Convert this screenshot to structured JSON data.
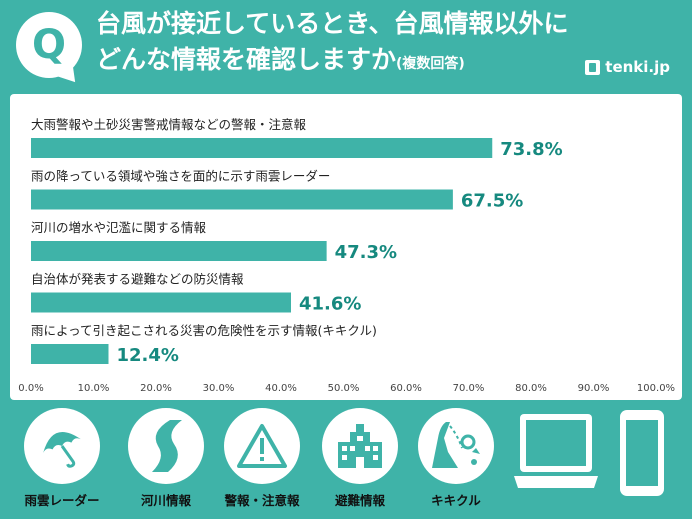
{
  "header": {
    "title_line1": "台風が接近しているとき、台風情報以外に",
    "title_line2": "どんな情報を確認しますか",
    "subtitle": "(複数回答)",
    "q_letter": "Q",
    "brand": "tenki.jp"
  },
  "chart_data": {
    "type": "bar",
    "orientation": "horizontal",
    "categories": [
      "大雨警報や土砂災害警戒情報などの警報・注意報",
      "雨の降っている領域や強さを面的に示す雨雲レーダー",
      "河川の増水や氾濫に関する情報",
      "自治体が発表する避難などの防災情報",
      "雨によって引き起こされる災害の危険性を示す情報(キキクル)"
    ],
    "values": [
      73.8,
      67.5,
      47.3,
      41.6,
      12.4
    ],
    "value_labels": [
      "73.8%",
      "67.5%",
      "47.3%",
      "41.6%",
      "12.4%"
    ],
    "xlim": [
      0,
      100
    ],
    "ticks": [
      "0.0%",
      "10.0%",
      "20.0%",
      "30.0%",
      "40.0%",
      "50.0%",
      "60.0%",
      "70.0%",
      "80.0%",
      "90.0%",
      "100.0%"
    ],
    "grid": false,
    "bar_color": "#3fb3a8",
    "value_color": "#16897f"
  },
  "icons": [
    {
      "icon": "umbrella-icon",
      "label": "雨雲レーダー"
    },
    {
      "icon": "river-icon",
      "label": "河川情報"
    },
    {
      "icon": "warning-icon",
      "label": "警報・注意報"
    },
    {
      "icon": "building-icon",
      "label": "避難情報"
    },
    {
      "icon": "landslide-icon",
      "label": "キキクル"
    }
  ],
  "colors": {
    "background": "#3fb3a8",
    "panel": "#ffffff"
  }
}
